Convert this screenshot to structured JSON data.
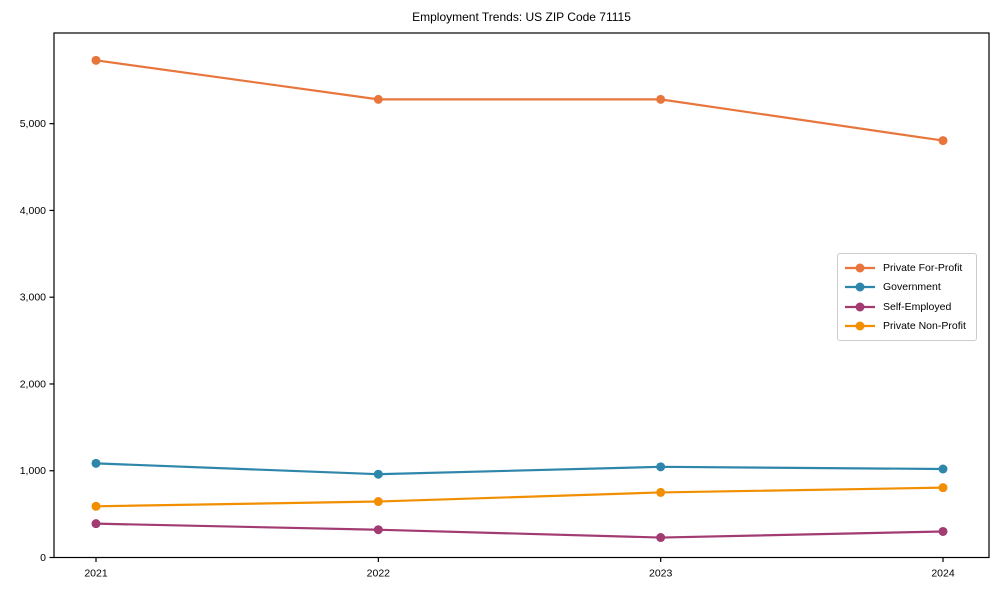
{
  "figure": {
    "background_color": "#ffffff",
    "axis_color": "#000000"
  },
  "chart_data": {
    "type": "line",
    "title": "Employment Trends: US ZIP Code 71115",
    "xlabel": "",
    "ylabel": "",
    "x": [
      "2021",
      "2022",
      "2023",
      "2024"
    ],
    "series": [
      {
        "name": "Private For-Profit",
        "color": "#E8763C",
        "values": [
          5730,
          5280,
          5280,
          4805
        ]
      },
      {
        "name": "Government",
        "color": "#2E86AB",
        "values": [
          1085,
          960,
          1045,
          1020
        ]
      },
      {
        "name": "Self-Employed",
        "color": "#A23B72",
        "values": [
          390,
          320,
          230,
          300
        ]
      },
      {
        "name": "Private Non-Profit",
        "color": "#F18F01",
        "values": [
          590,
          645,
          750,
          805
        ]
      }
    ],
    "ylim": [
      0,
      6045
    ],
    "yticks": [
      0,
      1000,
      2000,
      3000,
      4000,
      5000
    ],
    "ytick_labels": [
      "0",
      "1,000",
      "2,000",
      "3,000",
      "4,000",
      "5,000"
    ],
    "grid": false,
    "legend_position": "center right",
    "marker": "circle"
  }
}
